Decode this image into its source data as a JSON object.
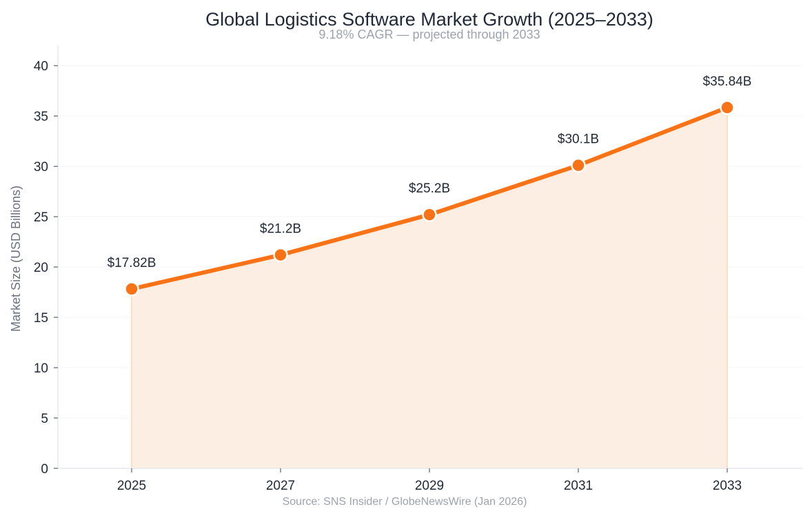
{
  "chart_data": {
    "type": "area",
    "title": "Global Logistics Software Market Growth (2025–2033)",
    "subtitle": "9.18% CAGR — projected through 2033",
    "ylabel": "Market Size (USD Billions)",
    "xlabel": "",
    "source": "Source: SNS Insider / GlobeNewsWire (Jan 2026)",
    "ylim": [
      0,
      42
    ],
    "yticks": [
      0,
      5,
      10,
      15,
      20,
      25,
      30,
      35,
      40
    ],
    "grid": true,
    "series": [
      {
        "name": "Market Size",
        "x": [
          "2025",
          "2027",
          "2029",
          "2031",
          "2033"
        ],
        "values": [
          17.82,
          21.2,
          25.2,
          30.1,
          35.84
        ],
        "labels": [
          "$17.82B",
          "$21.2B",
          "$25.2B",
          "$30.1B",
          "$35.84B"
        ]
      }
    ],
    "colors": {
      "line": "#f97316",
      "fill": "#fdeee3",
      "marker_edge": "#ffffff"
    }
  }
}
